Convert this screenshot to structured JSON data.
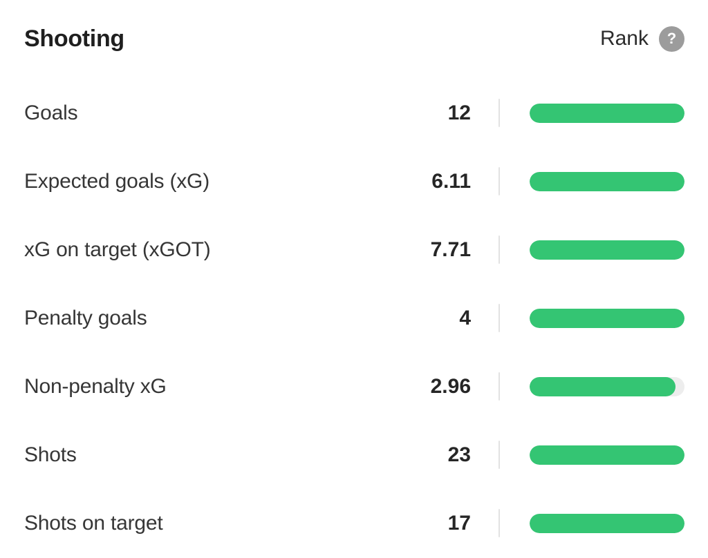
{
  "panel": {
    "title": "Shooting",
    "rank_label": "Rank",
    "help_icon": "?",
    "colors": {
      "bar_fill": "#34c573",
      "bar_track": "#ededed",
      "divider": "#e2e2e2",
      "help_bg": "#9c9c9c"
    },
    "rows": [
      {
        "label": "Goals",
        "value": "12",
        "fill_pct": 100
      },
      {
        "label": "Expected goals (xG)",
        "value": "6.11",
        "fill_pct": 100
      },
      {
        "label": "xG on target (xGOT)",
        "value": "7.71",
        "fill_pct": 100
      },
      {
        "label": "Penalty goals",
        "value": "4",
        "fill_pct": 100
      },
      {
        "label": "Non-penalty xG",
        "value": "2.96",
        "fill_pct": 94
      },
      {
        "label": "Shots",
        "value": "23",
        "fill_pct": 100
      },
      {
        "label": "Shots on target",
        "value": "17",
        "fill_pct": 100
      }
    ]
  }
}
